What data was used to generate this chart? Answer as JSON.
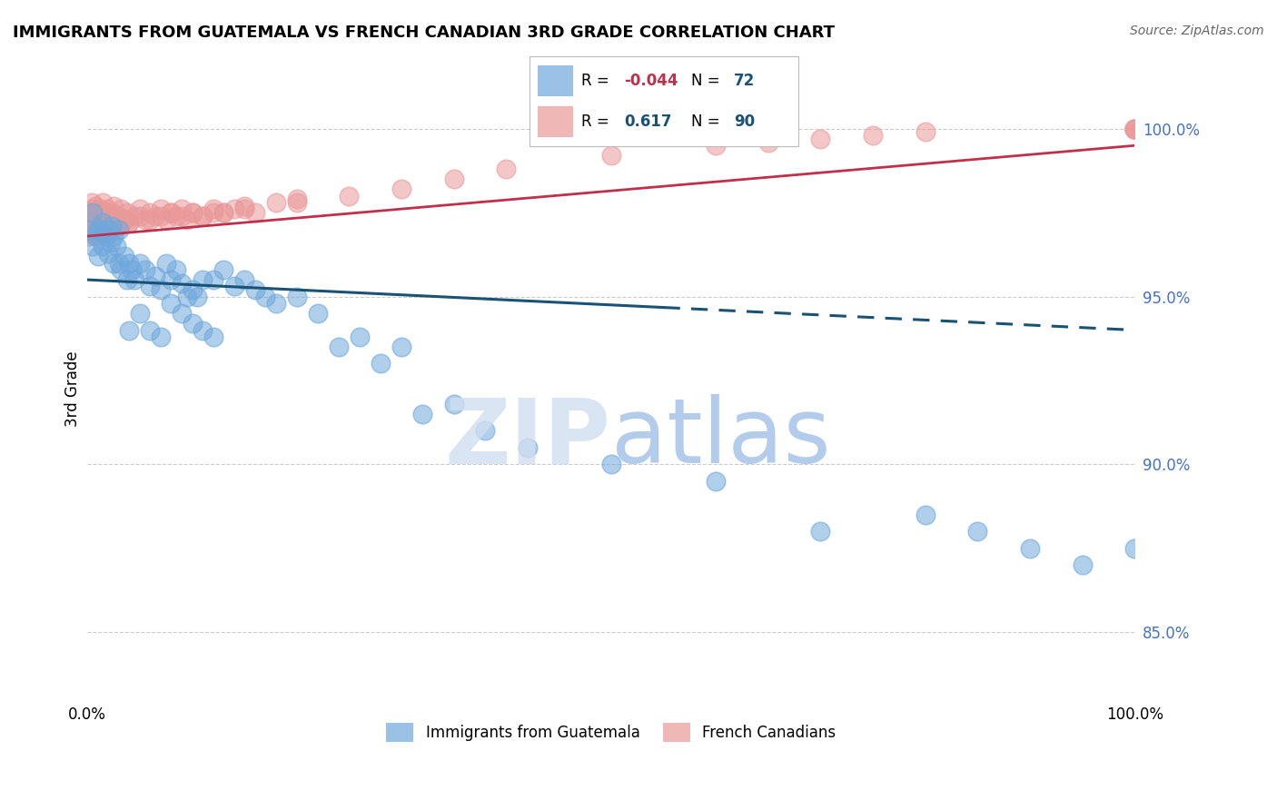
{
  "title": "IMMIGRANTS FROM GUATEMALA VS FRENCH CANADIAN 3RD GRADE CORRELATION CHART",
  "source": "Source: ZipAtlas.com",
  "ylabel": "3rd Grade",
  "right_yticks": [
    85.0,
    90.0,
    95.0,
    100.0
  ],
  "legend_r_blue": "-0.044",
  "legend_n_blue": "72",
  "legend_r_pink": "0.617",
  "legend_n_pink": "90",
  "legend_label_blue": "Immigrants from Guatemala",
  "legend_label_pink": "French Canadians",
  "blue_color": "#6fa8dc",
  "pink_color": "#ea9999",
  "blue_trend_color": "#1a5276",
  "pink_trend_color": "#c0304a",
  "background_color": "#ffffff",
  "grid_color": "#cccccc",
  "xlim": [
    0,
    100
  ],
  "ylim": [
    83.0,
    101.5
  ],
  "blue_trend_solid_end": 55,
  "blue_trend_x0": 0,
  "blue_trend_y0": 95.5,
  "blue_trend_x1": 100,
  "blue_trend_y1": 94.0,
  "pink_trend_x0": 0,
  "pink_trend_y0": 96.8,
  "pink_trend_x1": 100,
  "pink_trend_y1": 99.5,
  "blue_scatter_x": [
    0.3,
    0.5,
    0.5,
    0.8,
    1.0,
    1.0,
    1.2,
    1.5,
    1.5,
    1.8,
    2.0,
    2.0,
    2.2,
    2.3,
    2.5,
    2.5,
    2.8,
    3.0,
    3.0,
    3.2,
    3.5,
    3.8,
    4.0,
    4.2,
    4.5,
    5.0,
    5.5,
    6.0,
    6.5,
    7.0,
    7.5,
    8.0,
    8.5,
    9.0,
    9.5,
    10.0,
    10.5,
    11.0,
    12.0,
    13.0,
    14.0,
    15.0,
    16.0,
    17.0,
    18.0,
    20.0,
    22.0,
    24.0,
    26.0,
    28.0,
    30.0,
    32.0,
    35.0,
    38.0,
    42.0,
    50.0,
    60.0,
    70.0,
    80.0,
    85.0,
    90.0,
    95.0,
    100.0,
    8.0,
    9.0,
    10.0,
    11.0,
    12.0,
    4.0,
    5.0,
    6.0,
    7.0
  ],
  "blue_scatter_y": [
    97.0,
    96.5,
    97.5,
    96.8,
    96.2,
    97.0,
    97.0,
    96.5,
    97.2,
    96.8,
    96.3,
    97.0,
    96.6,
    97.1,
    96.0,
    96.8,
    96.5,
    96.0,
    97.0,
    95.8,
    96.2,
    95.5,
    96.0,
    95.8,
    95.5,
    96.0,
    95.8,
    95.3,
    95.6,
    95.2,
    96.0,
    95.5,
    95.8,
    95.4,
    95.0,
    95.2,
    95.0,
    95.5,
    95.5,
    95.8,
    95.3,
    95.5,
    95.2,
    95.0,
    94.8,
    95.0,
    94.5,
    93.5,
    93.8,
    93.0,
    93.5,
    91.5,
    91.8,
    91.0,
    90.5,
    90.0,
    89.5,
    88.0,
    88.5,
    88.0,
    87.5,
    87.0,
    87.5,
    94.8,
    94.5,
    94.2,
    94.0,
    93.8,
    94.0,
    94.5,
    94.0,
    93.8
  ],
  "pink_scatter_x": [
    0.2,
    0.3,
    0.4,
    0.5,
    0.6,
    0.7,
    0.8,
    0.9,
    1.0,
    1.0,
    1.1,
    1.2,
    1.3,
    1.5,
    1.5,
    1.6,
    1.7,
    1.8,
    1.9,
    2.0,
    2.0,
    2.2,
    2.3,
    2.5,
    2.5,
    2.8,
    3.0,
    3.2,
    3.5,
    3.8,
    4.0,
    4.5,
    5.0,
    5.5,
    6.0,
    6.5,
    7.0,
    7.5,
    8.0,
    8.5,
    9.0,
    9.5,
    10.0,
    11.0,
    12.0,
    13.0,
    14.0,
    15.0,
    16.0,
    18.0,
    20.0,
    25.0,
    30.0,
    35.0,
    40.0,
    50.0,
    60.0,
    65.0,
    70.0,
    75.0,
    80.0,
    100.0,
    100.0,
    100.0,
    0.2,
    0.4,
    0.6,
    0.8,
    1.0,
    1.2,
    1.4,
    1.6,
    1.8,
    2.0,
    2.5,
    3.0,
    3.5,
    4.0,
    5.0,
    6.0,
    7.0,
    8.0,
    9.0,
    10.0,
    11.0,
    12.0,
    13.0,
    15.0,
    20.0,
    100.0
  ],
  "pink_scatter_y": [
    97.5,
    97.2,
    97.8,
    97.3,
    97.6,
    97.4,
    97.7,
    97.2,
    97.5,
    97.0,
    97.3,
    97.6,
    97.1,
    97.4,
    97.8,
    97.2,
    97.5,
    97.3,
    97.6,
    97.0,
    97.4,
    97.2,
    97.5,
    97.3,
    97.7,
    97.1,
    97.4,
    97.6,
    97.3,
    97.5,
    97.2,
    97.4,
    97.6,
    97.3,
    97.5,
    97.4,
    97.6,
    97.3,
    97.5,
    97.4,
    97.6,
    97.3,
    97.5,
    97.4,
    97.6,
    97.5,
    97.6,
    97.7,
    97.5,
    97.8,
    97.9,
    98.0,
    98.2,
    98.5,
    98.8,
    99.2,
    99.5,
    99.6,
    99.7,
    99.8,
    99.9,
    100.0,
    100.0,
    100.0,
    96.8,
    97.0,
    96.9,
    97.1,
    96.8,
    97.0,
    96.9,
    97.1,
    96.8,
    97.0,
    97.2,
    97.1,
    97.3,
    97.2,
    97.4,
    97.3,
    97.4,
    97.5,
    97.4,
    97.5,
    97.4,
    97.5,
    97.5,
    97.6,
    97.8,
    100.0
  ]
}
